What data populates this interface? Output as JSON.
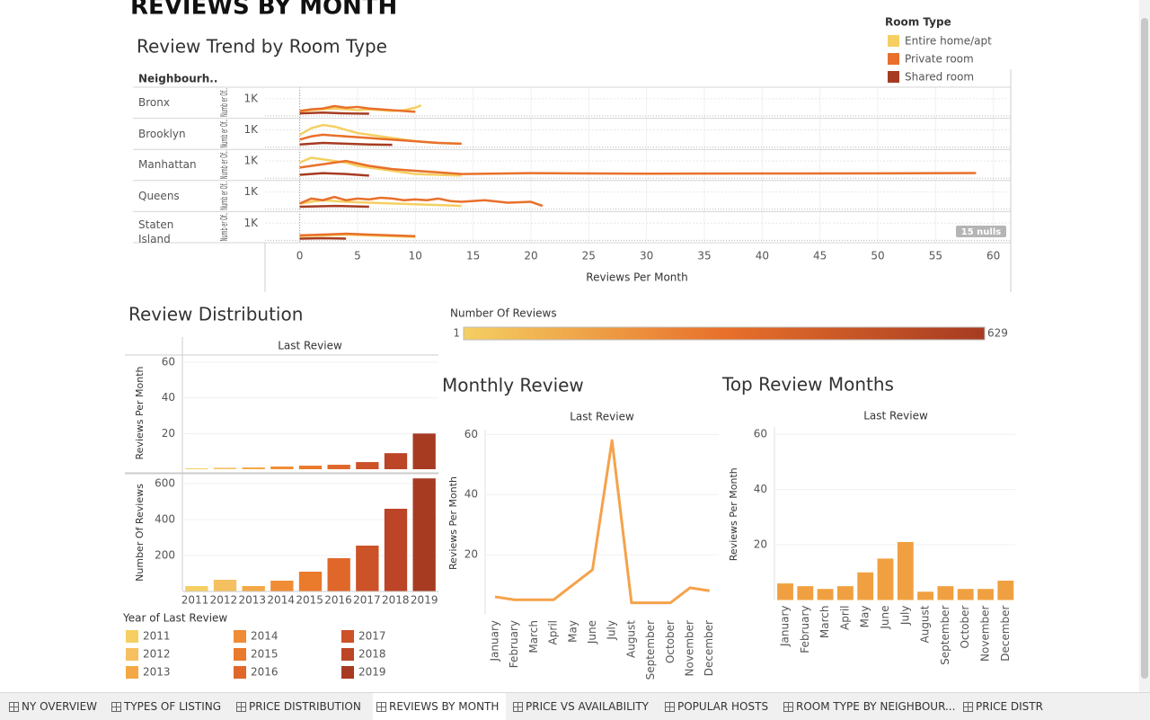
{
  "header": {
    "title": "REVIEWS BY MONTH"
  },
  "tabs": [
    "NY OVERVIEW",
    "TYPES OF LISTING",
    "PRICE DISTRIBUTION",
    "REVIEWS BY MONTH",
    "PRICE VS AVAILABILITY",
    "POPULAR HOSTS",
    "ROOM TYPE BY NEIGHBOUR...",
    "PRICE DISTR"
  ],
  "active_tab": 3,
  "chart_data": [
    {
      "type": "line",
      "title": "Review Trend by Room Type",
      "row_header": "Neighbourh..",
      "legend": {
        "title": "Room Type",
        "items": [
          {
            "name": "Entire home/apt",
            "color": "#f5cf62"
          },
          {
            "name": "Private room",
            "color": "#e8702a"
          },
          {
            "name": "Shared room",
            "color": "#a63b22"
          }
        ]
      },
      "y_label": "Numb er Of..",
      "ylim": [
        0,
        1600
      ],
      "yticks": [
        {
          "value": 1000,
          "label": "1K"
        }
      ],
      "xlim": [
        -3,
        61.5
      ],
      "xticks": [
        0,
        5,
        10,
        15,
        20,
        25,
        30,
        35,
        40,
        45,
        50,
        55,
        60
      ],
      "x_label": "Reviews Per Month",
      "annotation": "15 nulls",
      "panels": [
        {
          "name": "Bronx",
          "series": [
            {
              "x": [
                0,
                1,
                2,
                3,
                4,
                5,
                6,
                7,
                8,
                9,
                10,
                10.5
              ],
              "values": [
                200,
                300,
                350,
                400,
                350,
                300,
                350,
                300,
                250,
                300,
                450,
                600
              ]
            },
            {
              "x": [
                0,
                1,
                2,
                3,
                4,
                5,
                6,
                7,
                8,
                9,
                10
              ],
              "values": [
                250,
                350,
                400,
                550,
                450,
                500,
                400,
                350,
                300,
                250,
                200
              ]
            },
            {
              "x": [
                0,
                2,
                4,
                6
              ],
              "values": [
                100,
                150,
                100,
                80
              ]
            }
          ]
        },
        {
          "name": "Brooklyn",
          "series": [
            {
              "x": [
                0,
                1,
                2,
                3,
                4,
                5,
                6,
                7,
                8,
                9,
                10,
                11,
                12,
                14
              ],
              "values": [
                700,
                1100,
                1300,
                1200,
                1000,
                800,
                700,
                600,
                500,
                400,
                300,
                250,
                200,
                150
              ]
            },
            {
              "x": [
                0,
                1,
                2,
                3,
                4,
                5,
                6,
                7,
                8,
                9,
                10,
                11,
                12,
                14
              ],
              "values": [
                400,
                600,
                700,
                650,
                600,
                550,
                500,
                450,
                400,
                350,
                300,
                250,
                200,
                150
              ]
            },
            {
              "x": [
                0,
                2,
                4,
                6,
                8
              ],
              "values": [
                100,
                200,
                150,
                100,
                80
              ]
            }
          ]
        },
        {
          "name": "Manhattan",
          "series": [
            {
              "x": [
                0,
                1,
                2,
                3,
                4,
                5,
                6,
                7,
                8,
                10,
                14
              ],
              "values": [
                900,
                1200,
                1100,
                1000,
                900,
                700,
                600,
                500,
                400,
                200,
                100
              ]
            },
            {
              "x": [
                0,
                2,
                4,
                6,
                8,
                10,
                12,
                14,
                20,
                30,
                40,
                50,
                58.5
              ],
              "values": [
                600,
                800,
                1000,
                700,
                500,
                400,
                300,
                200,
                250,
                220,
                230,
                240,
                260
              ]
            },
            {
              "x": [
                0,
                2,
                4,
                6
              ],
              "values": [
                150,
                250,
                200,
                100
              ]
            }
          ]
        },
        {
          "name": "Queens",
          "series": [
            {
              "x": [
                0,
                2,
                4,
                6,
                8,
                10,
                12,
                14
              ],
              "values": [
                300,
                500,
                400,
                350,
                300,
                250,
                200,
                150
              ]
            },
            {
              "x": [
                0,
                1,
                2,
                3,
                4,
                5,
                6,
                7,
                8,
                9,
                10,
                11,
                12,
                13,
                14,
                16,
                18,
                20,
                21
              ],
              "values": [
                300,
                600,
                500,
                700,
                500,
                600,
                550,
                650,
                600,
                500,
                550,
                500,
                600,
                450,
                400,
                500,
                350,
                400,
                150
              ]
            },
            {
              "x": [
                0,
                3,
                6
              ],
              "values": [
                100,
                150,
                100
              ]
            }
          ]
        },
        {
          "name": "Staten Island",
          "series": [
            {
              "x": [
                0,
                2,
                4,
                6,
                8,
                10
              ],
              "values": [
                200,
                250,
                300,
                250,
                200,
                150
              ]
            },
            {
              "x": [
                0,
                2,
                4,
                6,
                8,
                10
              ],
              "values": [
                250,
                300,
                350,
                300,
                250,
                200
              ]
            },
            {
              "x": [
                0,
                2,
                4
              ],
              "values": [
                50,
                80,
                50
              ]
            }
          ]
        }
      ]
    },
    {
      "type": "bar",
      "title": "Review Distribution",
      "column_header": "Last Review",
      "categories": [
        "2011",
        "2012",
        "2013",
        "2014",
        "2015",
        "2016",
        "2017",
        "2018",
        "2019"
      ],
      "colors": [
        "#f5cf62",
        "#f5c060",
        "#f5a845",
        "#f08c35",
        "#ea7a2c",
        "#e0672a",
        "#cc5228",
        "#bb4526",
        "#a63b22"
      ],
      "legend_title": "Year of Last Review",
      "color_scale": {
        "title": "Number Of Reviews",
        "min": 1,
        "max": 629
      },
      "panels": [
        {
          "y_label": "Reviews Per Month",
          "ylim": [
            0,
            63
          ],
          "yticks": [
            20,
            40,
            60
          ],
          "values": [
            0.5,
            0.8,
            1,
            1.5,
            2,
            2.5,
            4,
            9,
            20
          ]
        },
        {
          "y_label": "Number Of Reviews",
          "ylim": [
            0,
            655
          ],
          "yticks": [
            200,
            400,
            600
          ],
          "values": [
            30,
            65,
            30,
            60,
            110,
            185,
            255,
            460,
            629
          ]
        }
      ]
    },
    {
      "type": "line",
      "title": "Monthly Review",
      "column_header": "Last Review",
      "categories": [
        "January",
        "February",
        "March",
        "April",
        "May",
        "June",
        "July",
        "August",
        "September",
        "October",
        "November",
        "December"
      ],
      "values": [
        6,
        5,
        5,
        5,
        10,
        15,
        58,
        4,
        4,
        4,
        9,
        8
      ],
      "color": "#f5a24b",
      "y_label": "Reviews Per Month",
      "ylim": [
        0,
        61
      ],
      "yticks": [
        20,
        40,
        60
      ]
    },
    {
      "type": "bar",
      "title": "Top Review Months",
      "column_header": "Last Review",
      "categories": [
        "January",
        "February",
        "March",
        "April",
        "May",
        "June",
        "July",
        "August",
        "September",
        "October",
        "November",
        "December"
      ],
      "values": [
        6,
        5,
        4,
        5,
        10,
        15,
        21,
        3,
        5,
        4,
        4,
        7
      ],
      "color": "#f0a040",
      "y_label": "Reviews Per Month",
      "ylim": [
        0,
        62
      ],
      "yticks": [
        20,
        40,
        60
      ]
    }
  ]
}
